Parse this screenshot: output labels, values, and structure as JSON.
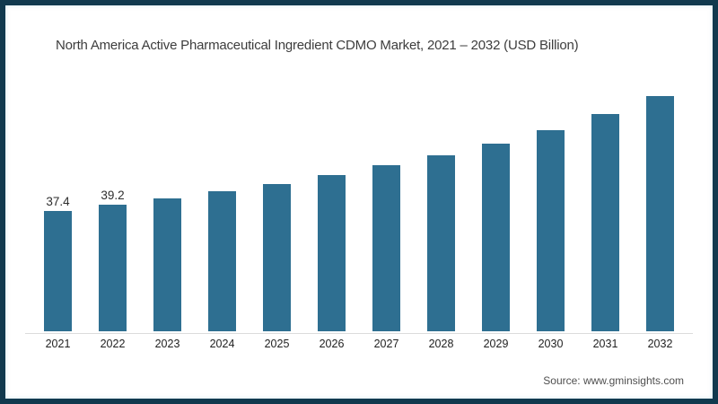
{
  "frame": {
    "border_color": "#11394e",
    "background": "#ffffff"
  },
  "title": "North America Active Pharmaceutical Ingredient CDMO Market, 2021 – 2032 (USD Billion)",
  "source": "Source: www.gminsights.com",
  "chart_data": {
    "type": "bar",
    "title": "North America Active Pharmaceutical Ingredient CDMO Market, 2021 – 2032 (USD Billion)",
    "categories": [
      "2021",
      "2022",
      "2023",
      "2024",
      "2025",
      "2026",
      "2027",
      "2028",
      "2029",
      "2030",
      "2031",
      "2032"
    ],
    "values": [
      37.4,
      39.2,
      41.1,
      43.3,
      45.5,
      48.3,
      51.3,
      54.4,
      58.0,
      62.4,
      67.4,
      72.7
    ],
    "bar_labels": [
      "37.4",
      "39.2",
      "",
      "",
      "",
      "",
      "",
      "",
      "",
      "",
      "",
      ""
    ],
    "bar_color": "#2e6f91",
    "xlabel": "",
    "ylabel": "USD Billion",
    "ylim": [
      0,
      80
    ],
    "grid": false,
    "legend": "none",
    "data_labels_note": "only 2021 and 2022 bars carry visible value labels"
  }
}
